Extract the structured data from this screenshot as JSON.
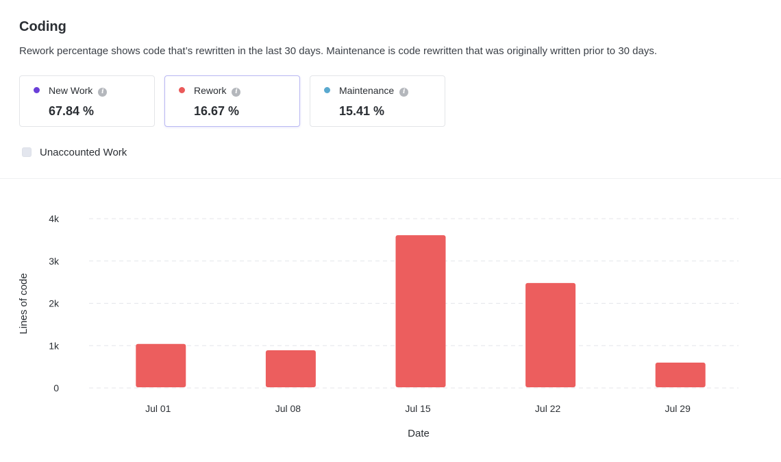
{
  "header": {
    "title": "Coding",
    "description": "Rework percentage shows code that’s rewritten in the last 30 days. Maintenance is code rewritten that was originally written prior to 30 days."
  },
  "cards": [
    {
      "label": "New Work",
      "value": "67.84 %",
      "color": "#6a3fd8",
      "active": false
    },
    {
      "label": "Rework",
      "value": "16.67 %",
      "color": "#ea5a5a",
      "active": true
    },
    {
      "label": "Maintenance",
      "value": "15.41 %",
      "color": "#5aa9cf",
      "active": false
    }
  ],
  "unaccounted": {
    "label": "Unaccounted Work",
    "checked": false
  },
  "chart_data": {
    "type": "bar",
    "categories": [
      "Jul 01",
      "Jul 08",
      "Jul 15",
      "Jul 22",
      "Jul 29"
    ],
    "series": [
      {
        "name": "Rework",
        "color": "#ec5e5e",
        "values": [
          1040,
          890,
          3610,
          2480,
          600
        ]
      }
    ],
    "ylim": [
      0,
      4000
    ],
    "yticks": [
      0,
      1000,
      2000,
      3000,
      4000
    ],
    "ytick_labels": [
      "0",
      "1k",
      "2k",
      "3k",
      "4k"
    ],
    "xlabel": "Date",
    "ylabel": "Lines of code",
    "grid": true
  }
}
